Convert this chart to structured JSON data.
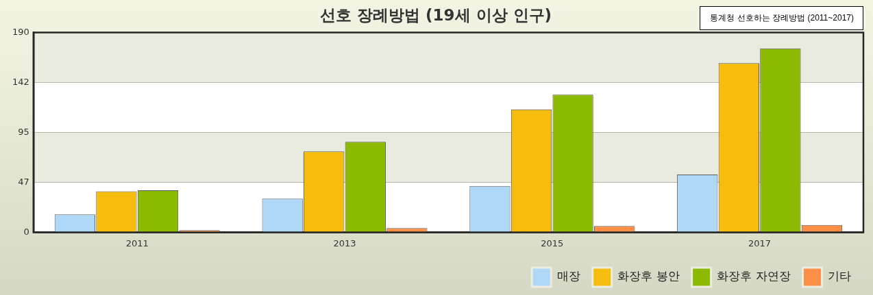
{
  "chart_data": {
    "type": "bar",
    "title": "선호 장례방법 (19세 이상 인구)",
    "annotations": [
      "통계청 선호하는 장례방법 (2011~2017)"
    ],
    "categories": [
      "2011",
      "2013",
      "2015",
      "2017"
    ],
    "series": [
      {
        "name": "매장",
        "color": "#afd8f8",
        "values": [
          17,
          32,
          44,
          55
        ]
      },
      {
        "name": "화장후 봉안",
        "color": "#f6bd0f",
        "values": [
          39,
          77,
          117,
          161
        ]
      },
      {
        "name": "화장후 자연장",
        "color": "#8bba00",
        "values": [
          40,
          86,
          131,
          175
        ]
      },
      {
        "name": "기타",
        "color": "#ff8e46",
        "values": [
          2,
          4,
          6,
          7
        ]
      }
    ],
    "ylim": [
      0,
      190
    ],
    "yticks": [
      0,
      {
        "value": 47.5,
        "label": "47"
      },
      95,
      {
        "value": 142.5,
        "label": "142"
      },
      190
    ],
    "grid": "y",
    "legend": "bottom right"
  }
}
